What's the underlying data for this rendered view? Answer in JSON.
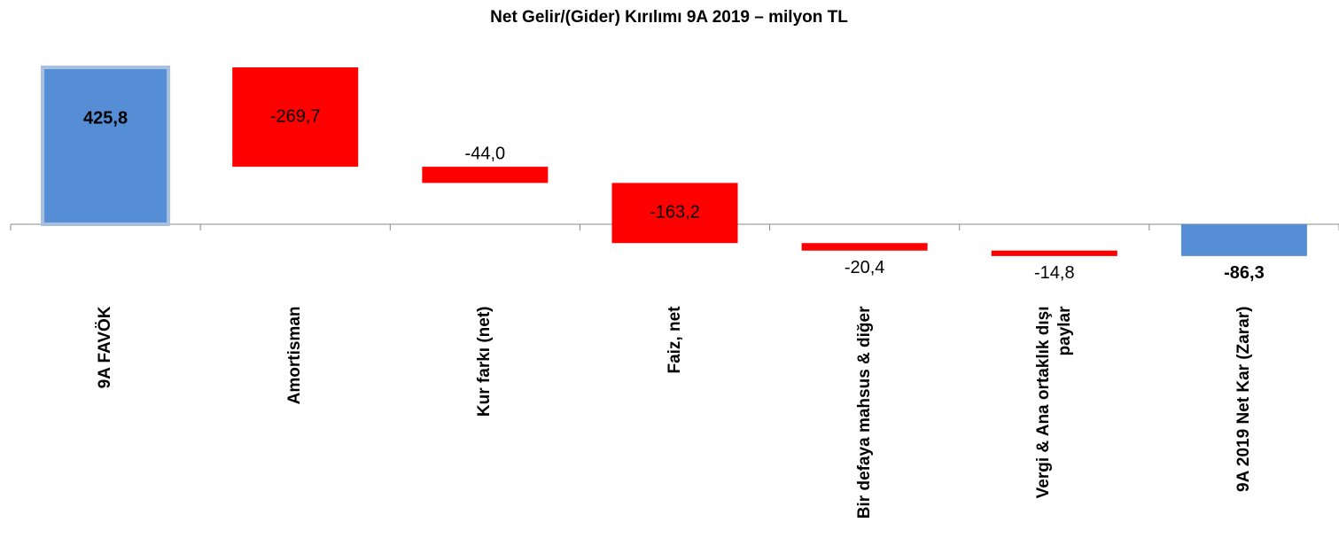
{
  "chart_data": {
    "type": "waterfall",
    "title": "Net Gelir/(Gider) Kırılımı 9A 2019 – milyon TL",
    "categories": [
      "9A FAVÖK",
      "Amortisman",
      "Kur farkı (net)",
      "Faiz, net",
      "Bir defaya mahsus & diğer",
      "Vergi & Ana ortaklık dışı paylar",
      "9A 2019 Net Kar (Zarar)"
    ],
    "values": [
      425.8,
      -269.7,
      -44.0,
      -163.2,
      -20.4,
      -14.8,
      -86.3
    ],
    "value_labels": [
      "425,8",
      "-269,7",
      "-44,0",
      "-163,2",
      "-20,4",
      "-14,8",
      "-86,3"
    ],
    "measure": [
      "absolute",
      "relative",
      "relative",
      "relative",
      "relative",
      "relative",
      "total"
    ],
    "colors": [
      "#558ed5",
      "#ff0000",
      "#ff0000",
      "#ff0000",
      "#ff0000",
      "#ff0000",
      "#558ed5"
    ]
  }
}
